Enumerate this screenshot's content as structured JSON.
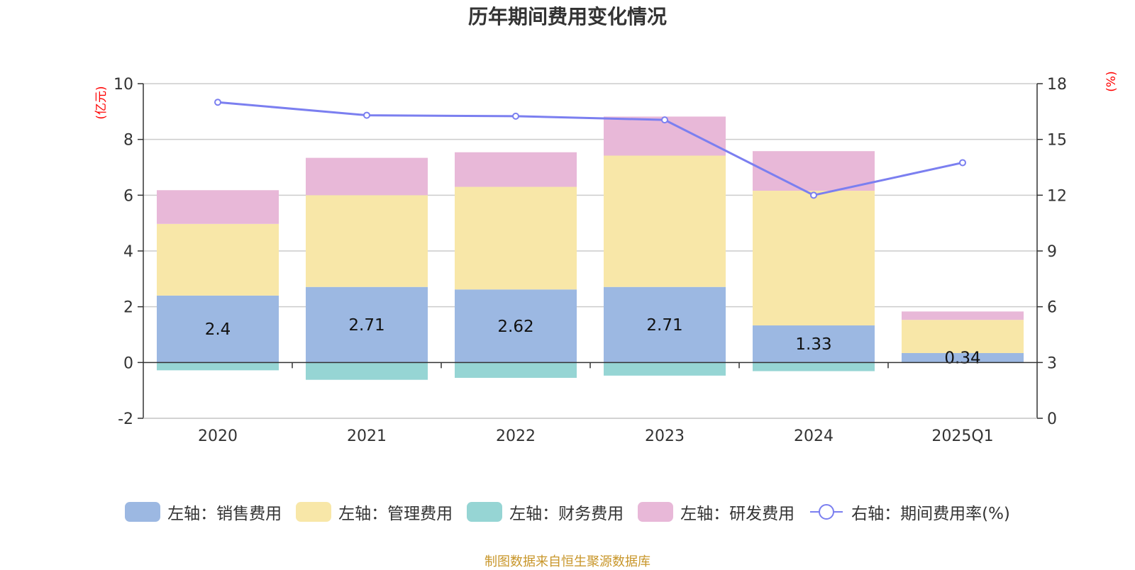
{
  "chart_data": {
    "type": "bar",
    "title": "历年期间费用变化情况",
    "categories": [
      "2020",
      "2021",
      "2022",
      "2023",
      "2024",
      "2025Q1"
    ],
    "left_axis": {
      "unit": "(亿元)",
      "ylim": [
        -2,
        10
      ],
      "ticks": [
        -2,
        0,
        2,
        4,
        6,
        8,
        10
      ]
    },
    "right_axis": {
      "unit": "(%)",
      "ylim": [
        0,
        18
      ],
      "ticks": [
        0,
        3,
        6,
        9,
        12,
        15,
        18
      ]
    },
    "series": [
      {
        "name": "左轴：销售费用",
        "color": "#9cb8e2",
        "values": [
          2.4,
          2.71,
          2.62,
          2.71,
          1.33,
          0.34
        ],
        "labels": [
          "2.4",
          "2.71",
          "2.62",
          "2.71",
          "1.33",
          "0.34"
        ]
      },
      {
        "name": "左轴：管理费用",
        "color": "#f8e7a8",
        "values": [
          2.57,
          3.29,
          3.68,
          4.71,
          4.83,
          1.19
        ]
      },
      {
        "name": "左轴：财务费用",
        "color": "#96d5d4",
        "values": [
          -0.28,
          -0.62,
          -0.55,
          -0.47,
          -0.31,
          0.0
        ]
      },
      {
        "name": "左轴：研发费用",
        "color": "#e8b8d8",
        "values": [
          1.21,
          1.34,
          1.24,
          1.4,
          1.42,
          0.3
        ]
      },
      {
        "name": "右轴：期间费用率(%)",
        "color": "#7b7ff0",
        "type": "line",
        "values": [
          17.0,
          16.3,
          16.25,
          16.05,
          12.0,
          13.75
        ]
      }
    ]
  },
  "source": "制图数据来自恒生聚源数据库"
}
